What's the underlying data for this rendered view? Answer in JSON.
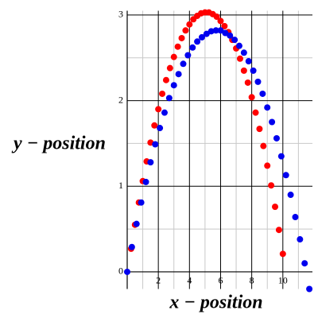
{
  "chart_data": {
    "type": "scatter",
    "xlabel": "x − position",
    "ylabel": "y − position",
    "xlim": [
      0,
      11.9
    ],
    "ylim": [
      -0.2,
      3.05
    ],
    "xticks": [
      2,
      4,
      6,
      8,
      10
    ],
    "yticks": [
      0,
      1,
      2,
      3
    ],
    "x_minor_grid": [
      1,
      3,
      5,
      7,
      9,
      11
    ],
    "y_minor_grid": [
      0.5,
      1.5,
      2.5
    ],
    "grid": true,
    "series": [
      {
        "color": "#ff0000",
        "x": [
          0.25,
          0.5,
          0.75,
          1.0,
          1.25,
          1.5,
          1.75,
          2.0,
          2.25,
          2.5,
          2.75,
          3.0,
          3.25,
          3.5,
          3.75,
          4.0,
          4.25,
          4.5,
          4.75,
          5.0,
          5.25,
          5.5,
          5.75,
          6.0,
          6.25,
          6.5,
          6.75,
          7.0,
          7.25,
          7.5,
          7.75,
          8.0,
          8.25,
          8.5,
          8.75,
          9.0,
          9.25,
          9.5,
          9.75,
          10.0
        ],
        "values": [
          0.27,
          0.55,
          0.81,
          1.06,
          1.29,
          1.51,
          1.71,
          1.9,
          2.08,
          2.24,
          2.38,
          2.51,
          2.63,
          2.73,
          2.82,
          2.89,
          2.95,
          2.99,
          3.02,
          3.03,
          3.03,
          3.01,
          2.98,
          2.93,
          2.87,
          2.8,
          2.71,
          2.61,
          2.49,
          2.35,
          2.21,
          2.04,
          1.86,
          1.67,
          1.47,
          1.24,
          1.01,
          0.76,
          0.49,
          0.21
        ]
      },
      {
        "color": "#0000ee",
        "x": [
          0,
          0.3,
          0.6,
          0.9,
          1.2,
          1.5,
          1.8,
          2.1,
          2.4,
          2.7,
          3.0,
          3.3,
          3.6,
          3.9,
          4.2,
          4.5,
          4.8,
          5.1,
          5.4,
          5.7,
          6.0,
          6.3,
          6.6,
          6.9,
          7.2,
          7.5,
          7.8,
          8.1,
          8.4,
          8.7,
          9.0,
          9.3,
          9.6,
          9.9,
          10.2,
          10.5,
          10.8,
          11.1,
          11.4,
          11.7
        ],
        "values": [
          0,
          0.29,
          0.56,
          0.81,
          1.05,
          1.28,
          1.49,
          1.68,
          1.86,
          2.03,
          2.18,
          2.31,
          2.43,
          2.53,
          2.62,
          2.69,
          2.74,
          2.78,
          2.81,
          2.82,
          2.82,
          2.79,
          2.76,
          2.71,
          2.64,
          2.56,
          2.46,
          2.35,
          2.22,
          2.08,
          1.92,
          1.75,
          1.56,
          1.35,
          1.13,
          0.9,
          0.64,
          0.38,
          0.1,
          -0.2
        ]
      }
    ]
  }
}
